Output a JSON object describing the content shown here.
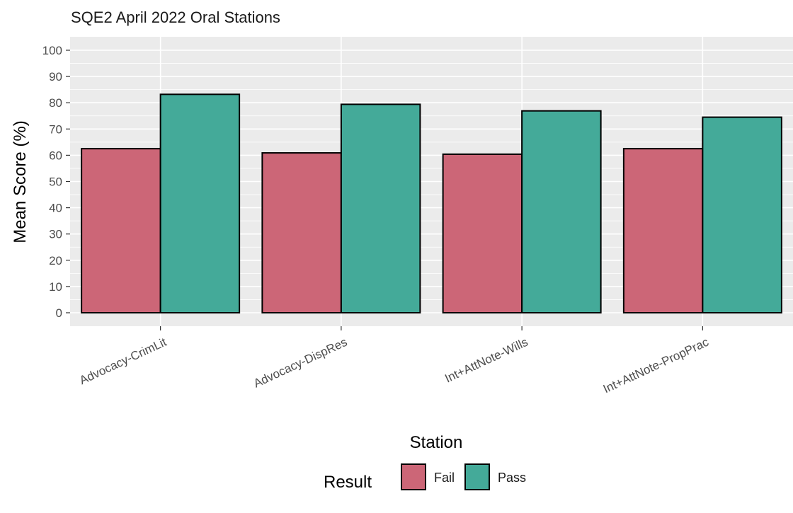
{
  "chart_data": {
    "type": "bar",
    "title": "SQE2 April 2022 Oral Stations",
    "xlabel": "Station",
    "ylabel": "Mean Score (%)",
    "categories": [
      "Advocacy-CrimLit",
      "Advocacy-DispRes",
      "Int+AttNote-Wills",
      "Int+AttNote-PropPrac"
    ],
    "series": [
      {
        "name": "Fail",
        "color": "#cc6677",
        "values": [
          62.5,
          60.9,
          60.4,
          62.5
        ]
      },
      {
        "name": "Pass",
        "color": "#44aa99",
        "values": [
          83.2,
          79.4,
          76.9,
          74.5
        ]
      }
    ],
    "yticks": [
      0,
      10,
      20,
      30,
      40,
      50,
      60,
      70,
      80,
      90,
      100
    ],
    "ylim": [
      -2.8,
      105.5
    ],
    "grid": true,
    "legend": {
      "title": "Result",
      "position": "bottom",
      "items": [
        "Fail",
        "Pass"
      ]
    }
  }
}
